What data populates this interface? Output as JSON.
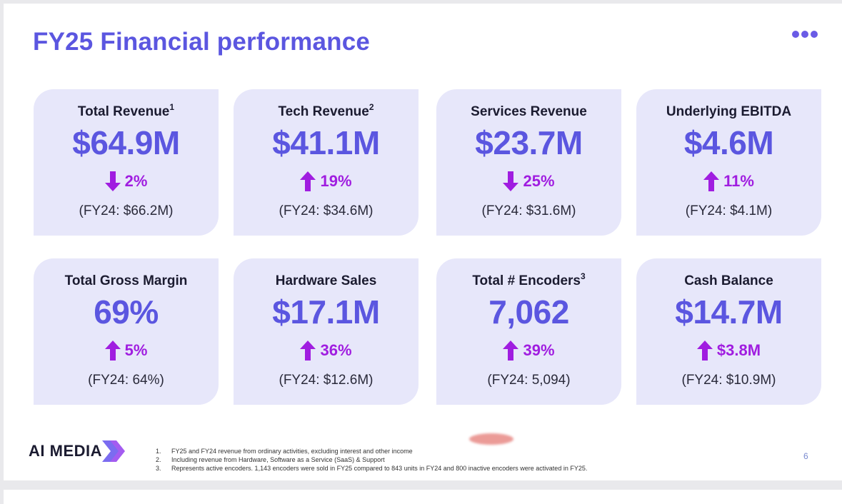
{
  "title": "FY25 Financial performance",
  "colors": {
    "accent": "#5b56e0",
    "change": "#a01de0",
    "card_bg": "#e7e7fa"
  },
  "cards": [
    {
      "title": "Total Revenue",
      "sup": "1",
      "value": "$64.9M",
      "direction": "down",
      "change": "2%",
      "prev": "(FY24: $66.2M)"
    },
    {
      "title": "Tech Revenue",
      "sup": "2",
      "value": "$41.1M",
      "direction": "up",
      "change": "19%",
      "prev": "(FY24: $34.6M)"
    },
    {
      "title": "Services Revenue",
      "sup": "",
      "value": "$23.7M",
      "direction": "down",
      "change": "25%",
      "prev": "(FY24: $31.6M)"
    },
    {
      "title": "Underlying EBITDA",
      "sup": "",
      "value": "$4.6M",
      "direction": "up",
      "change": "11%",
      "prev": "(FY24: $4.1M)"
    },
    {
      "title": "Total Gross Margin",
      "sup": "",
      "value": "69%",
      "direction": "up",
      "change": "5%",
      "prev": "(FY24: 64%)"
    },
    {
      "title": "Hardware Sales",
      "sup": "",
      "value": "$17.1M",
      "direction": "up",
      "change": "36%",
      "prev": "(FY24: $12.6M)"
    },
    {
      "title": "Total # Encoders",
      "sup": "3",
      "value": "7,062",
      "direction": "up",
      "change": "39%",
      "prev": "(FY24: 5,094)"
    },
    {
      "title": "Cash Balance",
      "sup": "",
      "value": "$14.7M",
      "direction": "up",
      "change": "$3.8M",
      "prev": "(FY24: $10.9M)"
    }
  ],
  "logo": {
    "text": "AI MEDIA"
  },
  "footnotes": [
    {
      "num": "1.",
      "text": "FY25 and FY24 revenue from ordinary activities, excluding interest and other income"
    },
    {
      "num": "2.",
      "text": "Including revenue from Hardware, Software as a Service (SaaS) & Support"
    },
    {
      "num": "3.",
      "text": "Represents active encoders. 1,143 encoders were sold in FY25 compared to 843 units in FY24 and 800 inactive encoders were activated in FY25."
    }
  ],
  "page_number": "6"
}
